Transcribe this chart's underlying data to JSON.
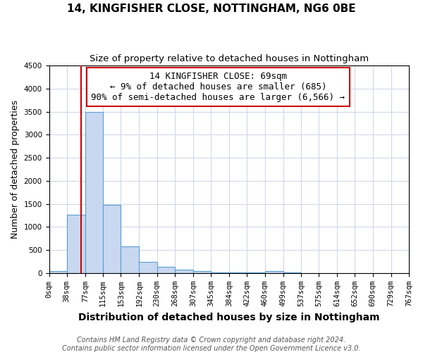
{
  "title": "14, KINGFISHER CLOSE, NOTTINGHAM, NG6 0BE",
  "subtitle": "Size of property relative to detached houses in Nottingham",
  "xlabel": "Distribution of detached houses by size in Nottingham",
  "ylabel": "Number of detached properties",
  "bin_edges": [
    0,
    38,
    77,
    115,
    153,
    192,
    230,
    268,
    307,
    345,
    384,
    422,
    460,
    499,
    537,
    575,
    614,
    652,
    690,
    729,
    767
  ],
  "bin_labels": [
    "0sqm",
    "38sqm",
    "77sqm",
    "115sqm",
    "153sqm",
    "192sqm",
    "230sqm",
    "268sqm",
    "307sqm",
    "345sqm",
    "384sqm",
    "422sqm",
    "460sqm",
    "499sqm",
    "537sqm",
    "575sqm",
    "614sqm",
    "652sqm",
    "690sqm",
    "729sqm",
    "767sqm"
  ],
  "counts": [
    50,
    1270,
    3500,
    1480,
    580,
    240,
    140,
    80,
    50,
    10,
    10,
    10,
    50,
    10,
    0,
    0,
    0,
    0,
    0,
    0
  ],
  "bar_facecolor": "#c8d8f0",
  "bar_edgecolor": "#5a9fd4",
  "grid_color": "#d0d8e8",
  "vline_x": 69,
  "vline_color": "#cc0000",
  "annotation_line1": "14 KINGFISHER CLOSE: 69sqm",
  "annotation_line2": "← 9% of detached houses are smaller (685)",
  "annotation_line3": "90% of semi-detached houses are larger (6,566) →",
  "annotation_box_edgecolor": "#cc0000",
  "annotation_fontsize": 9,
  "ylim": [
    0,
    4500
  ],
  "yticks": [
    0,
    500,
    1000,
    1500,
    2000,
    2500,
    3000,
    3500,
    4000,
    4500
  ],
  "footer1": "Contains HM Land Registry data © Crown copyright and database right 2024.",
  "footer2": "Contains public sector information licensed under the Open Government Licence v3.0.",
  "title_fontsize": 11,
  "subtitle_fontsize": 9.5,
  "xlabel_fontsize": 10,
  "ylabel_fontsize": 9,
  "tick_fontsize": 7.5,
  "footer_fontsize": 7
}
